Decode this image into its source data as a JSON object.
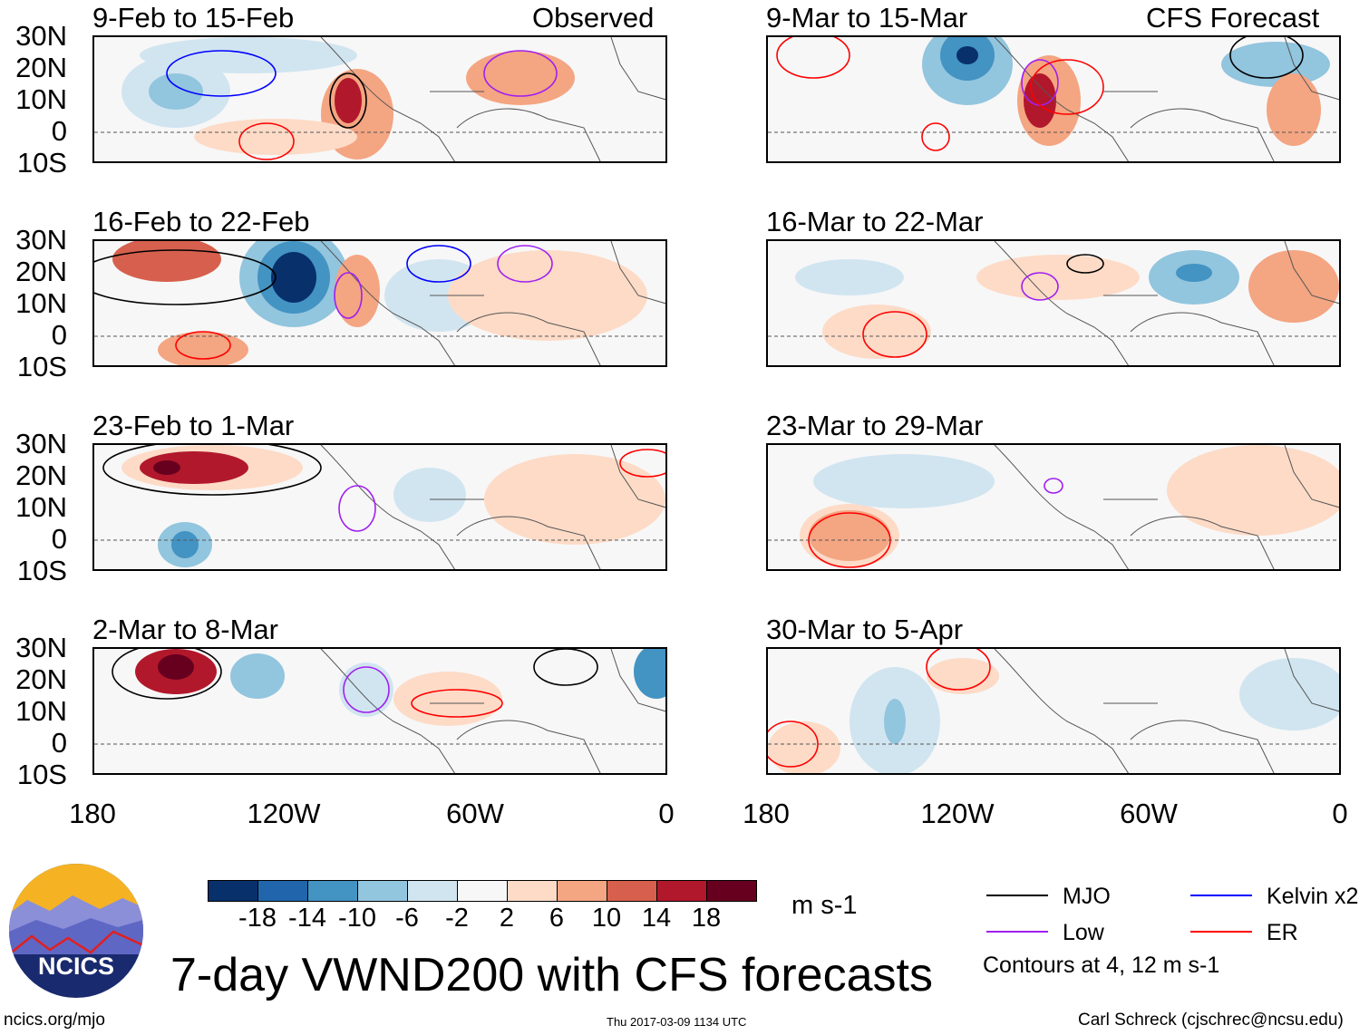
{
  "title": "7-day VWND200 with CFS forecasts",
  "panels_left_header": "Observed",
  "panels_right_header": "CFS Forecast",
  "panels": [
    {
      "label": "9-Feb to 15-Feb",
      "column": "observed"
    },
    {
      "label": "16-Feb to 22-Feb",
      "column": "observed"
    },
    {
      "label": "23-Feb to 1-Mar",
      "column": "observed"
    },
    {
      "label": "2-Mar to 8-Mar",
      "column": "observed"
    },
    {
      "label": "9-Mar to 15-Mar",
      "column": "forecast"
    },
    {
      "label": "16-Mar to 22-Mar",
      "column": "forecast"
    },
    {
      "label": "23-Mar to 29-Mar",
      "column": "forecast"
    },
    {
      "label": "30-Mar to 5-Apr",
      "column": "forecast"
    }
  ],
  "lat_ticks": [
    "30N",
    "20N",
    "10N",
    "0",
    "10S"
  ],
  "lon_ticks": [
    "180",
    "120W",
    "60W",
    "0"
  ],
  "colorbar": {
    "levels": [
      "-18",
      "-14",
      "-10",
      "-6",
      "-2",
      "2",
      "6",
      "10",
      "14",
      "18"
    ],
    "colors": [
      "#08306b",
      "#2166ac",
      "#4393c3",
      "#92c5de",
      "#d1e5f0",
      "#f7f7f7",
      "#fddbc7",
      "#f4a582",
      "#d6604d",
      "#b2182b",
      "#67001f"
    ],
    "units": "m s-1"
  },
  "legend": {
    "items": [
      {
        "label": "MJO",
        "color": "#000000"
      },
      {
        "label": "Kelvin x2",
        "color": "#0000ff"
      },
      {
        "label": "Low",
        "color": "#a020f0"
      },
      {
        "label": "ER",
        "color": "#ff0000"
      }
    ],
    "note": "Contours at 4, 12 m s-1"
  },
  "logo_text": "NCICS",
  "footer": {
    "url": "ncics.org/mjo",
    "timestamp": "Thu 2017-03-09 1134 UTC",
    "author": "Carl Schreck (cjschrec@ncsu.edu)"
  }
}
